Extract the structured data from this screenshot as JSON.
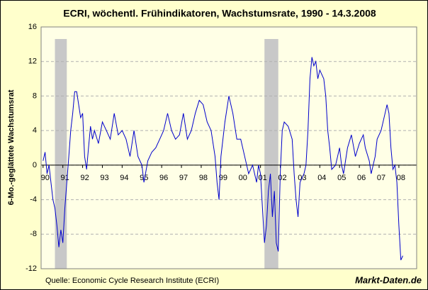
{
  "chart_data": {
    "type": "line",
    "title": "ECRI, wöchentl. Frühindikatoren, Wachstumsrate, 1990 - 14.3.2008",
    "y_label": "6-Mo.-geglättete Wachstumsrat",
    "source": "Quelle: Economic Cycle Research Institute (ECRI)",
    "brand": "Markt-Daten.de",
    "xlim": [
      1989.9,
      2008.9
    ],
    "xticks": [
      {
        "value": 1990,
        "label": "90"
      },
      {
        "value": 1991,
        "label": "91"
      },
      {
        "value": 1992,
        "label": "92"
      },
      {
        "value": 1993,
        "label": "93"
      },
      {
        "value": 1994,
        "label": "94"
      },
      {
        "value": 1995,
        "label": "95"
      },
      {
        "value": 1996,
        "label": "96"
      },
      {
        "value": 1997,
        "label": "97"
      },
      {
        "value": 1998,
        "label": "98"
      },
      {
        "value": 1999,
        "label": "99"
      },
      {
        "value": 2000,
        "label": "00"
      },
      {
        "value": 2001,
        "label": "01"
      },
      {
        "value": 2002,
        "label": "02"
      },
      {
        "value": 2003,
        "label": "03"
      },
      {
        "value": 2004,
        "label": "04"
      },
      {
        "value": 2005,
        "label": "05"
      },
      {
        "value": 2006,
        "label": "06"
      },
      {
        "value": 2007,
        "label": "07"
      },
      {
        "value": 2008,
        "label": "08"
      }
    ],
    "ylim": [
      -12,
      16
    ],
    "yticks": [
      -12,
      -8,
      -4,
      0,
      4,
      8,
      12,
      16
    ],
    "grid": true,
    "shaded_periods": [
      [
        1990.6,
        1991.2
      ],
      [
        2001.2,
        2001.9
      ]
    ],
    "shade_color": "#c8c8c8",
    "series": [
      {
        "color": "#0000cc",
        "x": [
          1990.0,
          1990.1,
          1990.2,
          1990.3,
          1990.4,
          1990.5,
          1990.6,
          1990.7,
          1990.8,
          1990.9,
          1991.0,
          1991.1,
          1991.2,
          1991.3,
          1991.4,
          1991.5,
          1991.6,
          1991.7,
          1991.8,
          1991.9,
          1992.0,
          1992.1,
          1992.2,
          1992.3,
          1992.4,
          1992.5,
          1992.6,
          1992.8,
          1993.0,
          1993.2,
          1993.4,
          1993.6,
          1993.8,
          1994.0,
          1994.2,
          1994.4,
          1994.6,
          1994.8,
          1995.0,
          1995.1,
          1995.3,
          1995.5,
          1995.7,
          1995.9,
          1996.1,
          1996.3,
          1996.5,
          1996.7,
          1996.9,
          1997.1,
          1997.3,
          1997.5,
          1997.7,
          1997.9,
          1998.1,
          1998.3,
          1998.5,
          1998.7,
          1998.8,
          1998.9,
          1999.0,
          1999.2,
          1999.4,
          1999.6,
          1999.8,
          2000.0,
          2000.2,
          2000.4,
          2000.6,
          2000.8,
          2000.9,
          2001.0,
          2001.1,
          2001.2,
          2001.3,
          2001.4,
          2001.5,
          2001.6,
          2001.7,
          2001.8,
          2001.9,
          2002.0,
          2002.1,
          2002.2,
          2002.4,
          2002.6,
          2002.7,
          2002.8,
          2002.9,
          2003.0,
          2003.2,
          2003.3,
          2003.4,
          2003.5,
          2003.6,
          2003.7,
          2003.8,
          2003.9,
          2004.0,
          2004.2,
          2004.3,
          2004.4,
          2004.5,
          2004.6,
          2004.8,
          2004.9,
          2005.0,
          2005.1,
          2005.2,
          2005.4,
          2005.6,
          2005.8,
          2006.0,
          2006.2,
          2006.3,
          2006.5,
          2006.6,
          2006.8,
          2006.9,
          2007.1,
          2007.3,
          2007.4,
          2007.5,
          2007.6,
          2007.7,
          2007.8,
          2007.9,
          2008.0,
          2008.1,
          2008.2
        ],
        "values": [
          0.5,
          1.5,
          -1,
          0,
          -2,
          -4,
          -5,
          -7,
          -9.5,
          -7.5,
          -9,
          -5,
          -2,
          1,
          4,
          6,
          8.5,
          8.5,
          7,
          5.5,
          6,
          1,
          -0.5,
          2,
          4.5,
          3,
          4,
          2.5,
          5,
          4,
          3,
          6,
          3.5,
          4,
          3,
          1,
          4,
          1,
          0,
          -2,
          0.5,
          1.5,
          2,
          3,
          4,
          6,
          4,
          3,
          3.5,
          6,
          3,
          4,
          6,
          7.5,
          7,
          5,
          4,
          1,
          -2,
          -4,
          1,
          5,
          8,
          6,
          3,
          3,
          1,
          -1,
          0,
          -2,
          0,
          -1,
          -5,
          -9,
          -7,
          -3,
          -1,
          -6,
          -3,
          -9,
          -10,
          -1,
          4,
          5,
          4.5,
          3,
          -1,
          -4,
          -6,
          -2,
          -1,
          0,
          4,
          10,
          12.5,
          11.5,
          12,
          10,
          11,
          10,
          8,
          4,
          2,
          -0.5,
          0,
          1,
          2,
          0,
          -1,
          2,
          3.5,
          1,
          2.5,
          3.5,
          2,
          0.5,
          -1,
          1,
          3,
          4,
          6,
          7,
          6,
          2,
          -0.5,
          0,
          -2,
          -7,
          -11,
          -10.5
        ]
      }
    ]
  }
}
